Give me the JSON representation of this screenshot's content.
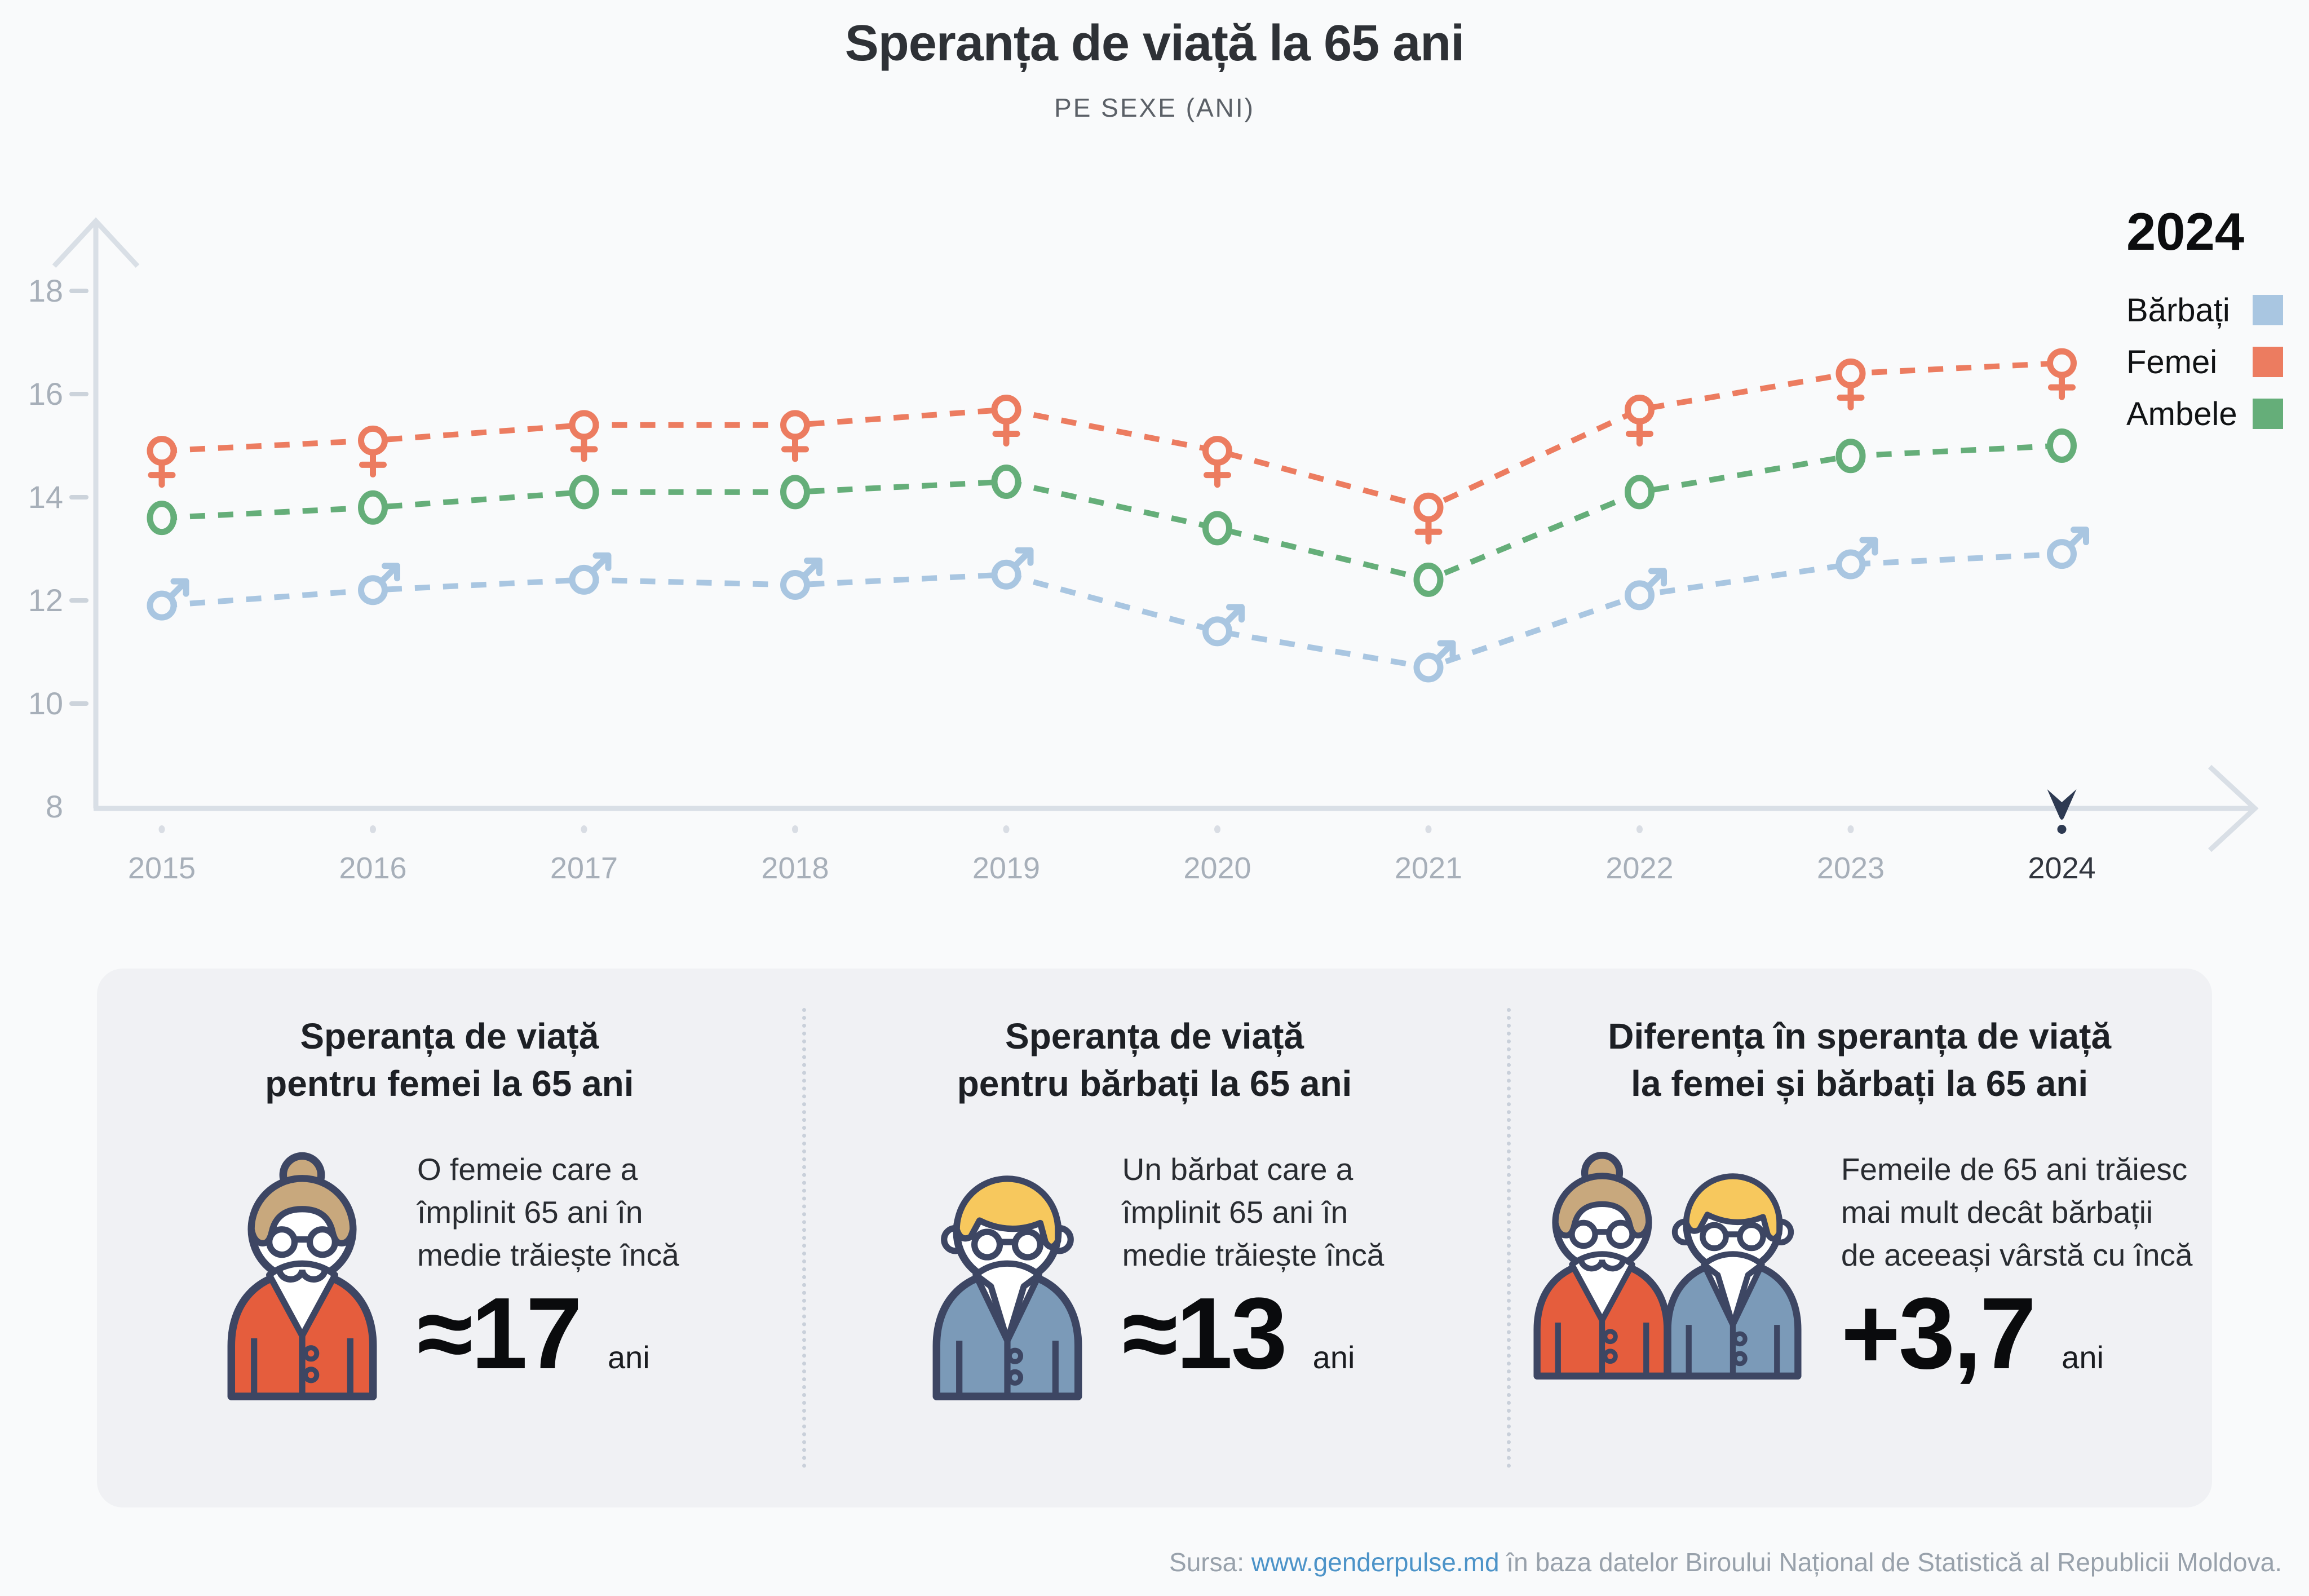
{
  "title": "Speranța de viață la 65 ani",
  "subtitle": "PE SEXE (ANI)",
  "legend": {
    "year": "2024",
    "items": [
      {
        "label": "Bărbați",
        "color": "#a9c6e1"
      },
      {
        "label": "Femei",
        "color": "#ec7c60"
      },
      {
        "label": "Ambele",
        "color": "#65ae79"
      }
    ]
  },
  "chart_data": {
    "type": "line",
    "title": "Speranța de viață la 65 ani",
    "subtitle": "PE SEXE (ANI)",
    "xlabel": "",
    "ylabel": "",
    "x": [
      2015,
      2016,
      2017,
      2018,
      2019,
      2020,
      2021,
      2022,
      2023,
      2024
    ],
    "series": [
      {
        "name": "Femei",
        "marker": "female",
        "color": "#ec7c60",
        "values": [
          14.9,
          15.1,
          15.4,
          15.4,
          15.7,
          14.9,
          13.8,
          15.7,
          16.4,
          16.6
        ]
      },
      {
        "name": "Ambele",
        "marker": "circle",
        "color": "#65ae79",
        "values": [
          13.6,
          13.8,
          14.1,
          14.1,
          14.3,
          13.4,
          12.4,
          14.1,
          14.8,
          15.0
        ]
      },
      {
        "name": "Bărbați",
        "marker": "male",
        "color": "#a9c6e1",
        "values": [
          11.9,
          12.2,
          12.4,
          12.3,
          12.5,
          11.4,
          10.7,
          12.1,
          12.7,
          12.9
        ]
      }
    ],
    "yticks": [
      18,
      16,
      14,
      12,
      10,
      8
    ],
    "ylim": [
      8,
      18
    ],
    "grid": false,
    "line_style": "dashed",
    "legend_position": "top-right",
    "selected_year": "2024"
  },
  "cards": [
    {
      "heading": "Speranța de viață\npentru femei la 65 ani",
      "icon": "woman-icon",
      "text": "O femeie care a\nîmplinit 65 ani în\nmedie trăiește încă",
      "value": "≈17",
      "unit": "ani"
    },
    {
      "heading": "Speranța de viață\npentru bărbați la 65 ani",
      "icon": "man-icon",
      "text": "Un bărbat care a\nîmplinit 65 ani în\nmedie trăiește încă",
      "value": "≈13",
      "unit": "ani"
    },
    {
      "heading": "Diferența în speranța de viață\nla femei și bărbați la 65 ani",
      "icon": "woman-and-man-icon",
      "text": "Femeile de 65 ani trăiesc\nmai mult decât bărbații\nde aceeași vârstă cu încă",
      "value": "+3,7",
      "unit": "ani"
    }
  ],
  "footer": {
    "prefix": "Sursa: ",
    "link": "www.genderpulse.md",
    "suffix": " în baza datelor Biroului Național de Statistică al Republicii Moldova."
  }
}
